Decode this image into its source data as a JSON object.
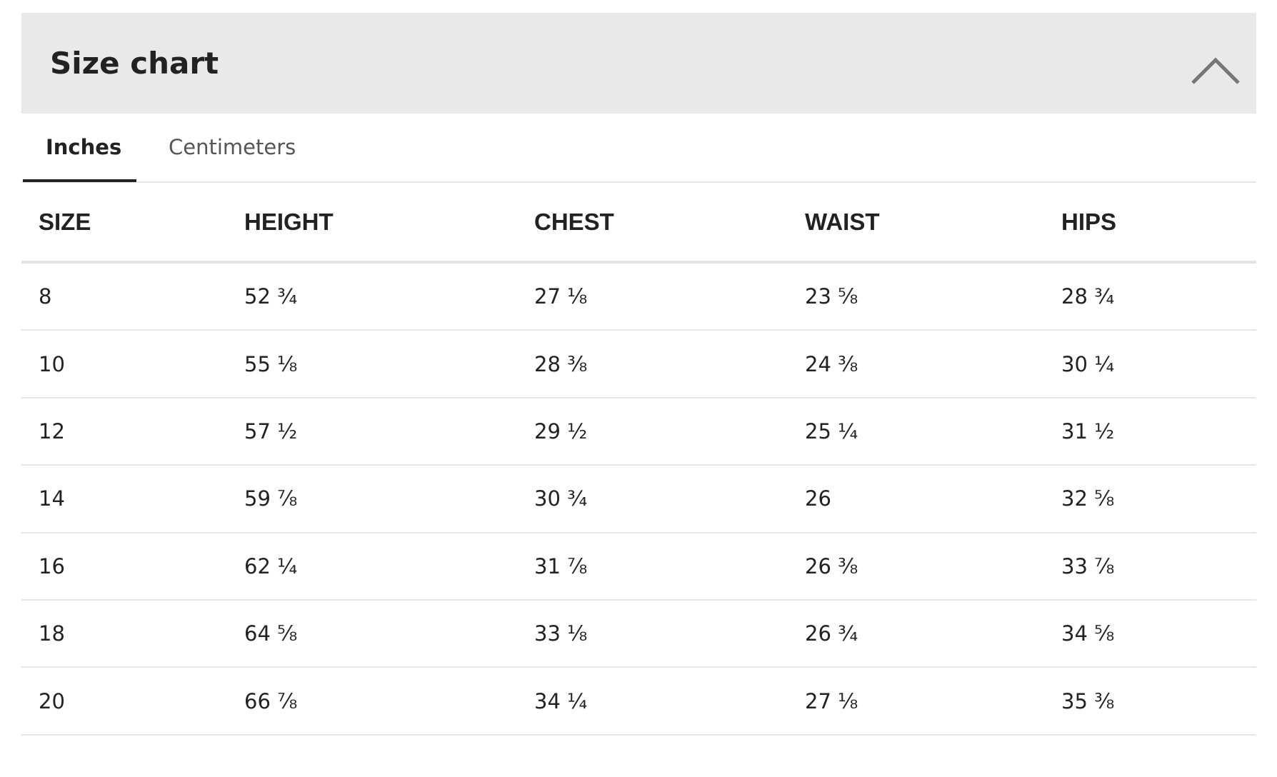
{
  "header": {
    "title": "Size chart"
  },
  "tabs": [
    "Inches",
    "Centimeters"
  ],
  "table": {
    "columns": [
      "SIZE",
      "HEIGHT",
      "CHEST",
      "WAIST",
      "HIPS"
    ],
    "rows": [
      [
        "8",
        "52 ¾",
        "27 ⅛",
        "23 ⅝",
        "28 ¾"
      ],
      [
        "10",
        "55 ⅛",
        "28 ⅜",
        "24 ⅜",
        "30 ¼"
      ],
      [
        "12",
        "57 ½",
        "29 ½",
        "25 ¼",
        "31 ½"
      ],
      [
        "14",
        "59 ⅞",
        "30 ¾",
        "26",
        "32 ⅝"
      ],
      [
        "16",
        "62 ¼",
        "31 ⅞",
        "26 ⅜",
        "33 ⅞"
      ],
      [
        "18",
        "64 ⅝",
        "33 ⅛",
        "26 ¾",
        "34 ⅝"
      ],
      [
        "20",
        "66 ⅞",
        "34 ¼",
        "27 ⅛",
        "35 ⅜"
      ]
    ]
  }
}
